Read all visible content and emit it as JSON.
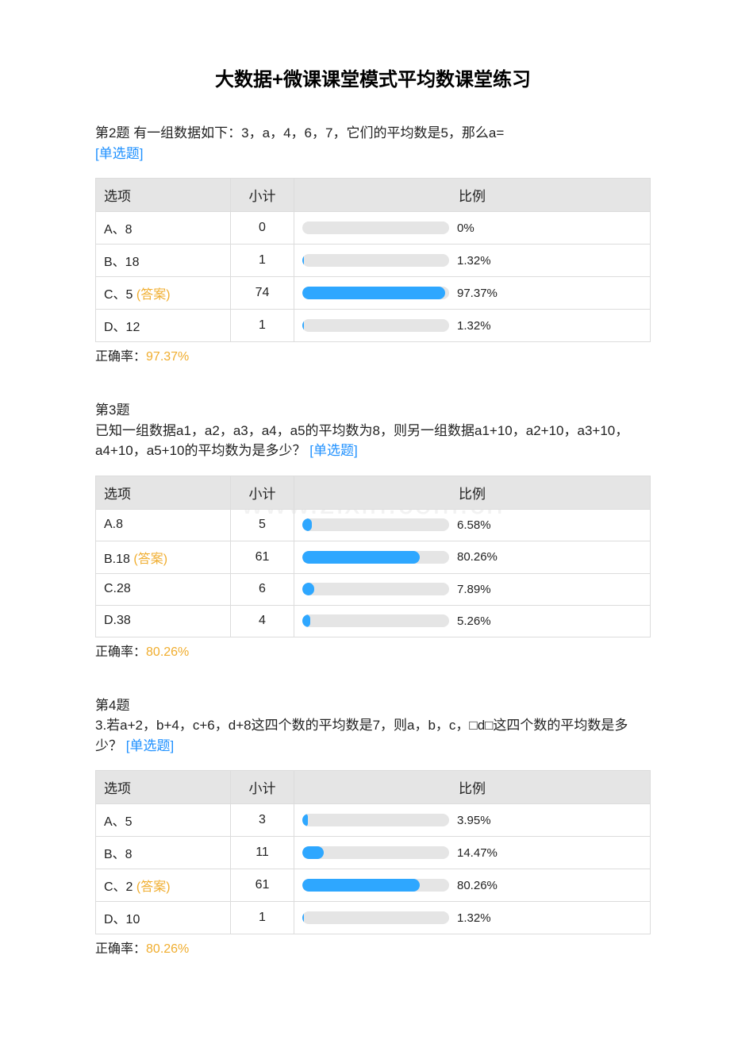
{
  "title": "大数据+微课课堂模式平均数课堂练习",
  "watermark_text": "www.zixin.com.cn",
  "colors": {
    "bar_fill": "#2ea7ff",
    "bar_track": "#e5e5e5",
    "header_bg": "#e5e5e5",
    "border": "#dcdcdc",
    "link_blue": "#1e90ff",
    "answer_orange": "#f0ad2e",
    "text": "#222222",
    "background": "#ffffff"
  },
  "typography": {
    "title_fontsize": 24,
    "body_fontsize": 17,
    "cell_fontsize": 16
  },
  "table_headers": {
    "option": "选项",
    "count": "小计",
    "ratio": "比例"
  },
  "questions": [
    {
      "number": "第2题",
      "text": "有一组数据如下：3，a，4，6，7，它们的平均数是5，那么a=",
      "tag": "[单选题]",
      "options": [
        {
          "label": "A、8",
          "is_answer": false,
          "count": 0,
          "percent": 0,
          "percent_str": "0%"
        },
        {
          "label": "B、18",
          "is_answer": false,
          "count": 1,
          "percent": 1.32,
          "percent_str": "1.32%"
        },
        {
          "label": "C、5",
          "is_answer": true,
          "answer_suffix": " (答案)",
          "count": 74,
          "percent": 97.37,
          "percent_str": "97.37%"
        },
        {
          "label": "D、12",
          "is_answer": false,
          "count": 1,
          "percent": 1.32,
          "percent_str": "1.32%"
        }
      ],
      "accuracy_label": "正确率：",
      "accuracy": "97.37%"
    },
    {
      "number": "第3题",
      "text": "已知一组数据a1，a2，a3，a4，a5的平均数为8，则另一组数据a1+10，a2+10，a3+10，a4+10，a5+10的平均数为是多少？",
      "tag": "[单选题]",
      "options": [
        {
          "label": "A.8",
          "is_answer": false,
          "count": 5,
          "percent": 6.58,
          "percent_str": "6.58%"
        },
        {
          "label": "B.18",
          "is_answer": true,
          "answer_suffix": " (答案)",
          "count": 61,
          "percent": 80.26,
          "percent_str": "80.26%"
        },
        {
          "label": "C.28",
          "is_answer": false,
          "count": 6,
          "percent": 7.89,
          "percent_str": "7.89%"
        },
        {
          "label": "D.38",
          "is_answer": false,
          "count": 4,
          "percent": 5.26,
          "percent_str": "5.26%"
        }
      ],
      "accuracy_label": "正确率：",
      "accuracy": "80.26%"
    },
    {
      "number": "第4题",
      "text": "3.若a+2，b+4，c+6，d+8这四个数的平均数是7，则a，b，c，□d□这四个数的平均数是多少？",
      "tag": "[单选题]",
      "options": [
        {
          "label": "A、5",
          "is_answer": false,
          "count": 3,
          "percent": 3.95,
          "percent_str": "3.95%"
        },
        {
          "label": "B、8",
          "is_answer": false,
          "count": 11,
          "percent": 14.47,
          "percent_str": "14.47%"
        },
        {
          "label": "C、2",
          "is_answer": true,
          "answer_suffix": " (答案)",
          "count": 61,
          "percent": 80.26,
          "percent_str": "80.26%"
        },
        {
          "label": "D、10",
          "is_answer": false,
          "count": 1,
          "percent": 1.32,
          "percent_str": "1.32%"
        }
      ],
      "accuracy_label": "正确率：",
      "accuracy": "80.26%"
    }
  ]
}
